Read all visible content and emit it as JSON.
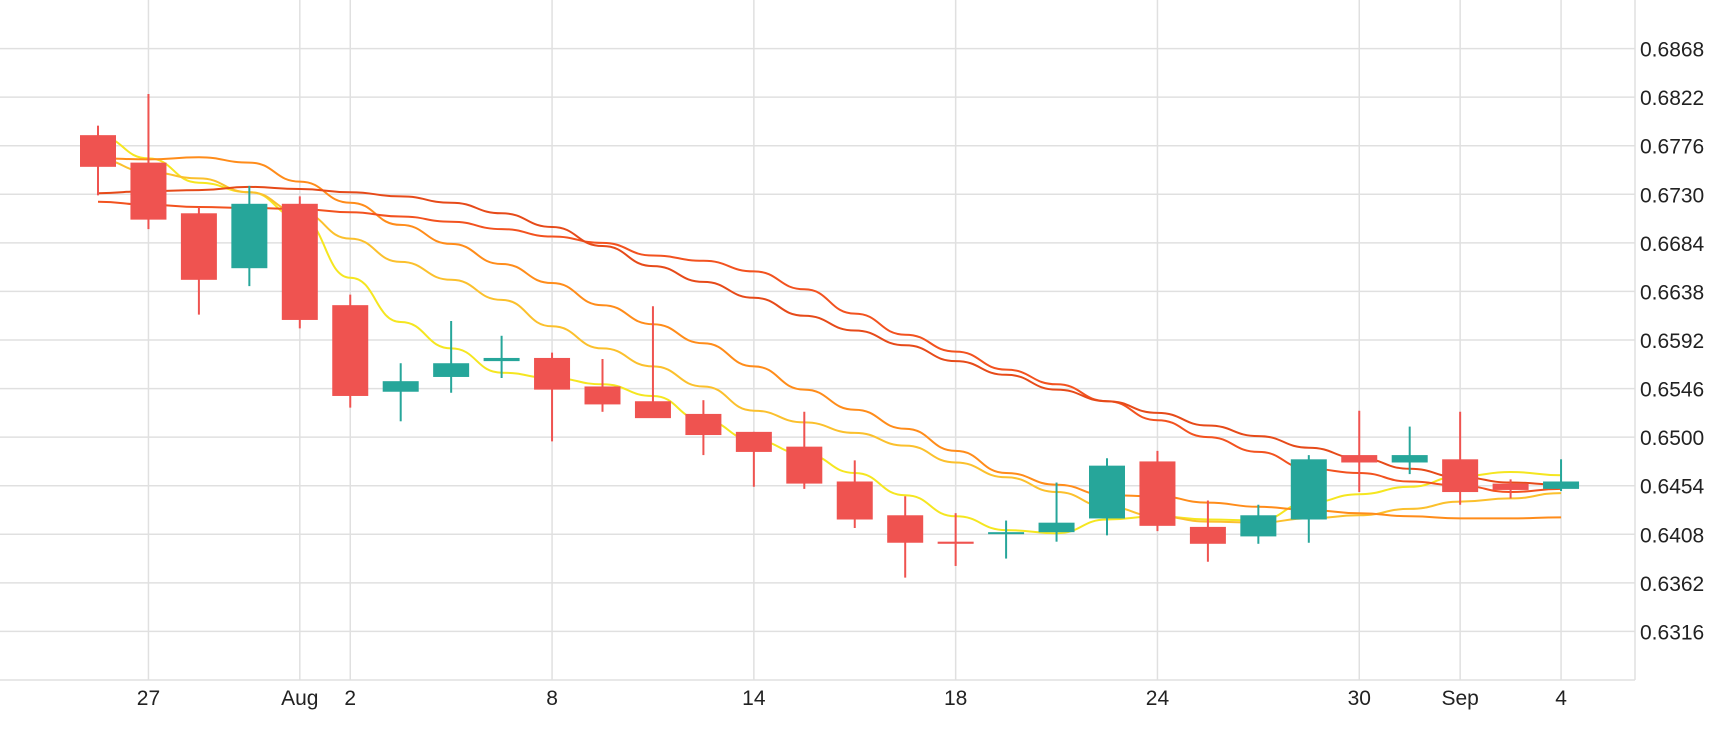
{
  "chart_data": {
    "type": "candlestick",
    "title": "",
    "xlabel": "",
    "ylabel": "",
    "x_tick_labels": [
      {
        "label": "27",
        "index": 1
      },
      {
        "label": "Aug",
        "index": 4
      },
      {
        "label": "2",
        "index": 5
      },
      {
        "label": "8",
        "index": 9
      },
      {
        "label": "14",
        "index": 13
      },
      {
        "label": "18",
        "index": 17
      },
      {
        "label": "24",
        "index": 21
      },
      {
        "label": "30",
        "index": 25
      },
      {
        "label": "Sep",
        "index": 27
      },
      {
        "label": "4",
        "index": 29
      }
    ],
    "y_tick_labels": [
      "0.6868",
      "0.6822",
      "0.6776",
      "0.6730",
      "0.6684",
      "0.6638",
      "0.6592",
      "0.6546",
      "0.6500",
      "0.6454",
      "0.6408",
      "0.6362",
      "0.6316"
    ],
    "ylim": [
      0.627,
      0.6914
    ],
    "grid": true,
    "y_axis_position": "right",
    "colors": {
      "up": "#26a69a",
      "down": "#ef5350",
      "grid": "#e0e0e0"
    },
    "candles": [
      {
        "o": 0.6786,
        "h": 0.6795,
        "l": 0.6729,
        "c": 0.6756
      },
      {
        "o": 0.676,
        "h": 0.6825,
        "l": 0.6697,
        "c": 0.6706
      },
      {
        "o": 0.6712,
        "h": 0.6718,
        "l": 0.6616,
        "c": 0.6649
      },
      {
        "o": 0.666,
        "h": 0.6738,
        "l": 0.6643,
        "c": 0.6721
      },
      {
        "o": 0.6721,
        "h": 0.6728,
        "l": 0.6603,
        "c": 0.6611
      },
      {
        "o": 0.6625,
        "h": 0.6635,
        "l": 0.6528,
        "c": 0.6539
      },
      {
        "o": 0.6543,
        "h": 0.657,
        "l": 0.6515,
        "c": 0.6553
      },
      {
        "o": 0.6557,
        "h": 0.661,
        "l": 0.6542,
        "c": 0.657
      },
      {
        "o": 0.6572,
        "h": 0.6596,
        "l": 0.6556,
        "c": 0.6575
      },
      {
        "o": 0.6575,
        "h": 0.658,
        "l": 0.6496,
        "c": 0.6545
      },
      {
        "o": 0.6548,
        "h": 0.6574,
        "l": 0.6524,
        "c": 0.6531
      },
      {
        "o": 0.6534,
        "h": 0.6624,
        "l": 0.6519,
        "c": 0.6518
      },
      {
        "o": 0.6522,
        "h": 0.6535,
        "l": 0.6483,
        "c": 0.6502
      },
      {
        "o": 0.6505,
        "h": 0.6505,
        "l": 0.6453,
        "c": 0.6486
      },
      {
        "o": 0.6491,
        "h": 0.6524,
        "l": 0.6451,
        "c": 0.6456
      },
      {
        "o": 0.6458,
        "h": 0.6478,
        "l": 0.6414,
        "c": 0.6422
      },
      {
        "o": 0.6426,
        "h": 0.6444,
        "l": 0.6367,
        "c": 0.64
      },
      {
        "o": 0.6401,
        "h": 0.6428,
        "l": 0.6378,
        "c": 0.6399
      },
      {
        "o": 0.6409,
        "h": 0.6421,
        "l": 0.6385,
        "c": 0.641
      },
      {
        "o": 0.641,
        "h": 0.6457,
        "l": 0.6401,
        "c": 0.6419
      },
      {
        "o": 0.6423,
        "h": 0.648,
        "l": 0.6407,
        "c": 0.6473
      },
      {
        "o": 0.6477,
        "h": 0.6487,
        "l": 0.6411,
        "c": 0.6416
      },
      {
        "o": 0.6415,
        "h": 0.644,
        "l": 0.6382,
        "c": 0.6399
      },
      {
        "o": 0.6406,
        "h": 0.6436,
        "l": 0.6399,
        "c": 0.6426
      },
      {
        "o": 0.6422,
        "h": 0.6483,
        "l": 0.64,
        "c": 0.6479
      },
      {
        "o": 0.6483,
        "h": 0.6525,
        "l": 0.6448,
        "c": 0.6476
      },
      {
        "o": 0.6476,
        "h": 0.651,
        "l": 0.6465,
        "c": 0.6483
      },
      {
        "o": 0.6479,
        "h": 0.6524,
        "l": 0.6436,
        "c": 0.6448
      },
      {
        "o": 0.6456,
        "h": 0.646,
        "l": 0.6442,
        "c": 0.645
      },
      {
        "o": 0.6451,
        "h": 0.6479,
        "l": 0.6449,
        "c": 0.6458
      }
    ],
    "moving_averages": [
      {
        "color": "#f5e620",
        "values": [
          0.6785,
          0.6764,
          0.6741,
          0.6732,
          0.6708,
          0.6651,
          0.6609,
          0.6584,
          0.6561,
          0.6556,
          0.655,
          0.6539,
          0.6516,
          0.6497,
          0.6484,
          0.6466,
          0.6445,
          0.6425,
          0.6412,
          0.6409,
          0.6422,
          0.6425,
          0.6422,
          0.6421,
          0.6438,
          0.6446,
          0.6453,
          0.6463,
          0.6467,
          0.6464
        ]
      },
      {
        "color": "#fbc02d",
        "values": [
          0.6763,
          0.6751,
          0.6745,
          0.6732,
          0.6713,
          0.6688,
          0.6666,
          0.6649,
          0.663,
          0.6605,
          0.6584,
          0.6567,
          0.6548,
          0.6525,
          0.6514,
          0.6504,
          0.6492,
          0.6476,
          0.6462,
          0.6448,
          0.6434,
          0.6425,
          0.642,
          0.6419,
          0.6423,
          0.6426,
          0.6432,
          0.6439,
          0.6442,
          0.6447
        ]
      },
      {
        "color": "#ff8c1a",
        "values": [
          0.6764,
          0.6763,
          0.6765,
          0.676,
          0.6742,
          0.6722,
          0.6701,
          0.6683,
          0.6664,
          0.6646,
          0.6625,
          0.6607,
          0.6589,
          0.6567,
          0.6545,
          0.6526,
          0.6508,
          0.6487,
          0.6466,
          0.6455,
          0.6445,
          0.6444,
          0.6438,
          0.6434,
          0.6431,
          0.6428,
          0.6425,
          0.6423,
          0.6423,
          0.6424
        ]
      },
      {
        "color": "#f2521f",
        "values": [
          0.6723,
          0.672,
          0.6718,
          0.6717,
          0.6716,
          0.6713,
          0.6709,
          0.6704,
          0.6697,
          0.669,
          0.6684,
          0.6672,
          0.6667,
          0.6657,
          0.664,
          0.6617,
          0.6597,
          0.6581,
          0.6564,
          0.655,
          0.6534,
          0.6516,
          0.65,
          0.6486,
          0.647,
          0.6466,
          0.6458,
          0.6454,
          0.6448,
          0.6451
        ]
      },
      {
        "color": "#e64a19",
        "values": [
          0.6731,
          0.6733,
          0.6734,
          0.6737,
          0.6735,
          0.6732,
          0.6728,
          0.6722,
          0.6712,
          0.6699,
          0.6681,
          0.6662,
          0.6647,
          0.6632,
          0.6615,
          0.6601,
          0.6587,
          0.6572,
          0.6559,
          0.6545,
          0.6534,
          0.6523,
          0.6511,
          0.6501,
          0.649,
          0.648,
          0.647,
          0.6462,
          0.6457,
          0.6455
        ]
      }
    ]
  }
}
